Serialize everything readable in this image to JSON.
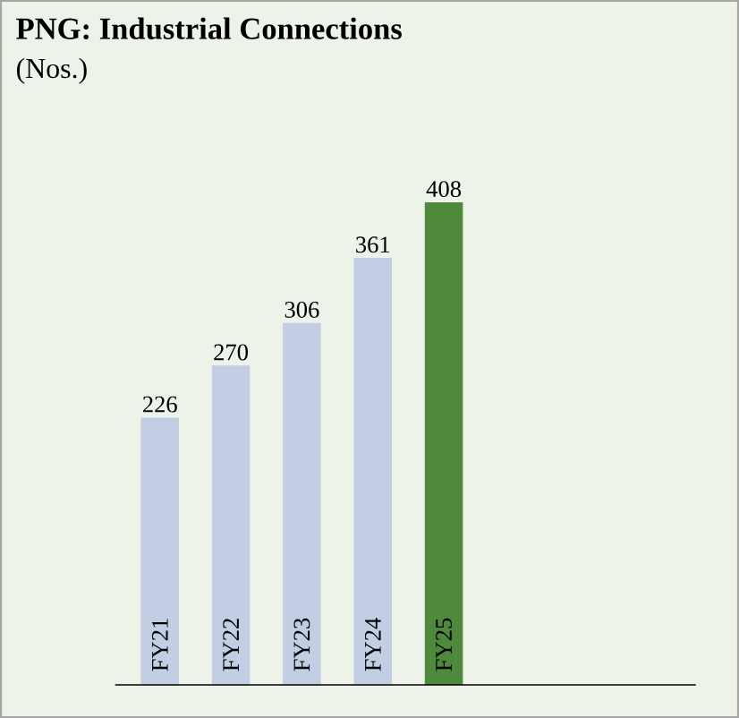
{
  "chart_data": {
    "type": "bar",
    "title": "PNG: Industrial Connections",
    "subtitle": "(Nos.)",
    "categories": [
      "FY21",
      "FY22",
      "FY23",
      "FY24",
      "FY25"
    ],
    "values": [
      226,
      270,
      306,
      361,
      408
    ],
    "colors": [
      "#c3cde3",
      "#c3cde3",
      "#c3cde3",
      "#c3cde3",
      "#4f8a3c"
    ],
    "data_labels": true
  }
}
